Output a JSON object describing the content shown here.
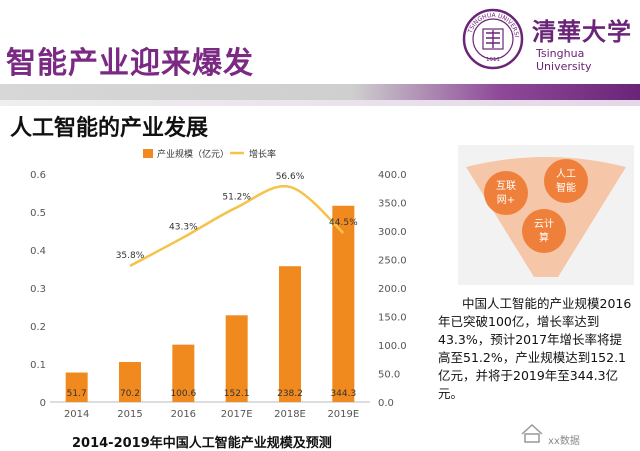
{
  "slide": {
    "title": "智能产业迎来爆发",
    "section_title": "人工智能的产业发展"
  },
  "logo": {
    "name_cn": "清華大学",
    "name_en": "Tsinghua University",
    "seal_text": "TSINGHUA UNIVERSITY",
    "seal_year": "1911"
  },
  "funnel": {
    "circles": [
      {
        "label": "互联网+"
      },
      {
        "label": "人工智能"
      },
      {
        "label": "云计算"
      }
    ]
  },
  "description": "中国人工智能的产业规模2016年已突破100亿，增长率达到43.3%，预计2017年增长率将提高至51.2%，产业规模达到152.1亿元，并将于2019年至344.3亿元。",
  "watermark": "xx数据",
  "chart_caption": "2014-2019年中国人工智能产业规模及预测",
  "colors": {
    "bar": "#f08a1e",
    "line": "#f6c34a",
    "title_purple": "#7b2a83",
    "funnel_dark": "#ee7a33",
    "funnel_light": "#f6c6a8"
  },
  "chart_data": {
    "type": "bar",
    "title": "",
    "categories": [
      "2014",
      "2015",
      "2016",
      "2017E",
      "2018E",
      "2019E"
    ],
    "series": [
      {
        "name": "产业规模（亿元）",
        "type": "bar",
        "axis": "right",
        "values": [
          51.7,
          70.2,
          100.6,
          152.1,
          238.2,
          344.3
        ],
        "labels": [
          "51.7",
          "70.2",
          "100.6",
          "152.1",
          "238.2",
          "344.3"
        ]
      },
      {
        "name": "增长率",
        "type": "line",
        "axis": "left",
        "values": [
          null,
          0.358,
          0.433,
          0.512,
          0.566,
          0.445
        ],
        "labels": [
          "",
          "35.8%",
          "43.3%",
          "51.2%",
          "56.6%",
          "44.5%"
        ]
      }
    ],
    "left_axis": {
      "ylim": [
        0,
        0.6
      ],
      "ticks": [
        "0",
        "0.1",
        "0.2",
        "0.3",
        "0.4",
        "0.5",
        "0.6"
      ]
    },
    "right_axis": {
      "ylim": [
        0,
        400
      ],
      "ticks": [
        "0.0",
        "50.0",
        "100.0",
        "150.0",
        "200.0",
        "250.0",
        "300.0",
        "350.0",
        "400.0"
      ]
    },
    "legend_position": "top",
    "grid": false
  }
}
